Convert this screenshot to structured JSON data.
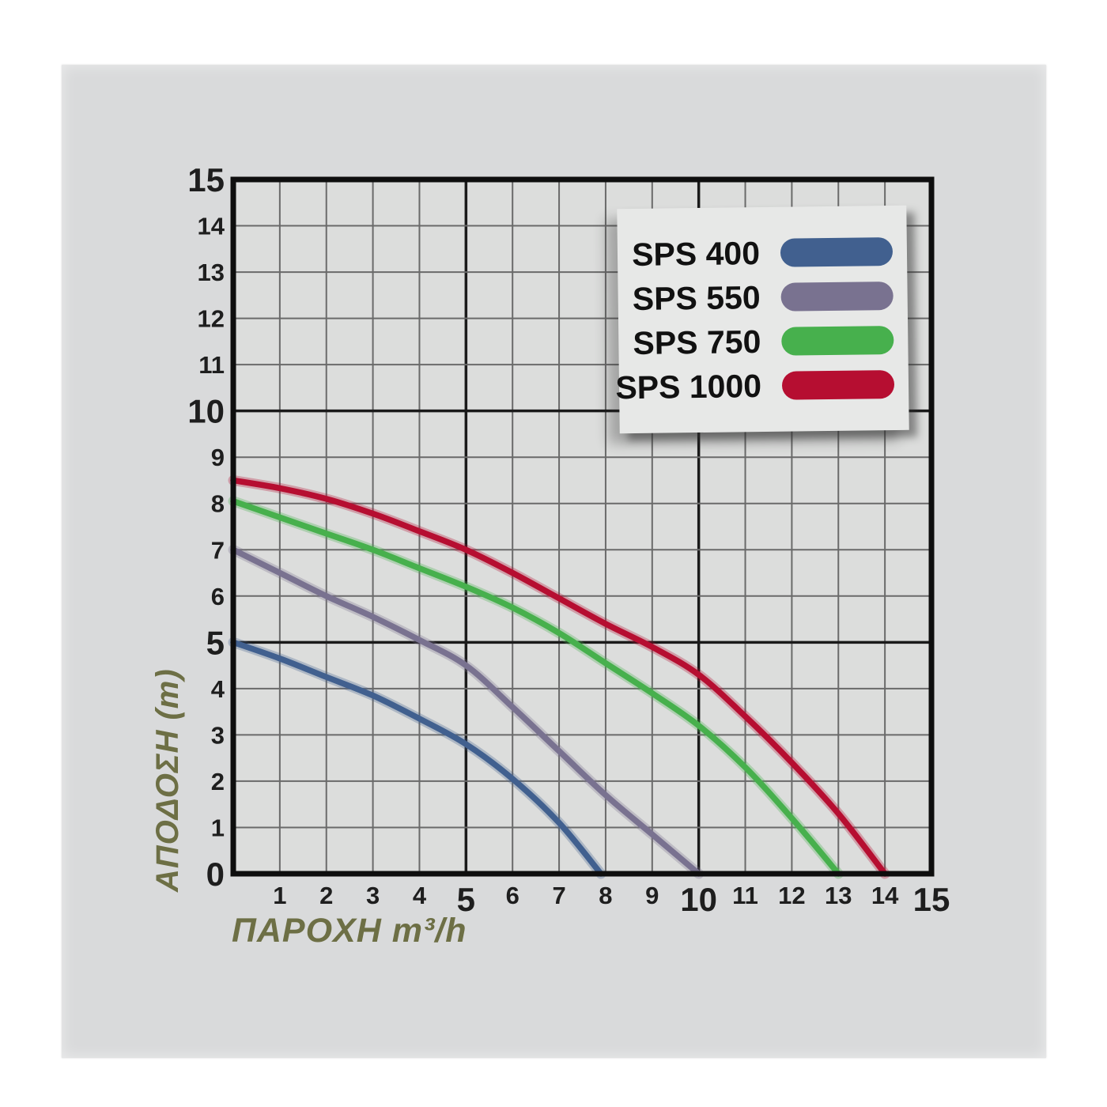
{
  "colors": {
    "panel_bg": "#d9dadb",
    "plot_bg": "#dcdddc",
    "grid_minor": "#6a6a6a",
    "grid_major": "#1a1a1a",
    "axis_border": "#0e0e0e",
    "tick_label": "#1e1e1e",
    "axis_title": "#6d6f45",
    "legend_bg": "#e7e8e7",
    "legend_text": "#111111"
  },
  "chart_data": {
    "type": "line",
    "title": "",
    "xlabel": "ΠΑΡΟΧΗ m³/h",
    "ylabel": "ΑΠΟΔΟΣΗ (m)",
    "xlim": [
      0,
      15
    ],
    "ylim": [
      0,
      15
    ],
    "x_ticks": [
      1,
      2,
      3,
      4,
      5,
      6,
      7,
      8,
      9,
      10,
      11,
      12,
      13,
      14,
      15
    ],
    "y_ticks": [
      0,
      1,
      2,
      3,
      4,
      5,
      6,
      7,
      8,
      9,
      10,
      11,
      12,
      13,
      14,
      15
    ],
    "major_tick_every": 5,
    "grid": true,
    "legend_position": "top-right",
    "series": [
      {
        "name": "SPS 400",
        "color": "#41608f",
        "points": [
          [
            0,
            5.0
          ],
          [
            1,
            4.65
          ],
          [
            2,
            4.25
          ],
          [
            3,
            3.85
          ],
          [
            4,
            3.35
          ],
          [
            5,
            2.8
          ],
          [
            6,
            2.05
          ],
          [
            7,
            1.1
          ],
          [
            7.9,
            0
          ]
        ]
      },
      {
        "name": "SPS 550",
        "color": "#797290",
        "points": [
          [
            0,
            7.0
          ],
          [
            1,
            6.5
          ],
          [
            2,
            6.0
          ],
          [
            3,
            5.55
          ],
          [
            4,
            5.05
          ],
          [
            5,
            4.5
          ],
          [
            6,
            3.6
          ],
          [
            7,
            2.65
          ],
          [
            8,
            1.7
          ],
          [
            9,
            0.85
          ],
          [
            10,
            0
          ]
        ]
      },
      {
        "name": "SPS 750",
        "color": "#47b04d",
        "points": [
          [
            0,
            8.05
          ],
          [
            1,
            7.7
          ],
          [
            2,
            7.35
          ],
          [
            3,
            7.0
          ],
          [
            4,
            6.6
          ],
          [
            5,
            6.2
          ],
          [
            6,
            5.75
          ],
          [
            7,
            5.2
          ],
          [
            8,
            4.55
          ],
          [
            9,
            3.9
          ],
          [
            10,
            3.2
          ],
          [
            11,
            2.3
          ],
          [
            12,
            1.2
          ],
          [
            13,
            0
          ]
        ]
      },
      {
        "name": "SPS 1000",
        "color": "#b60e31",
        "points": [
          [
            0,
            8.5
          ],
          [
            1,
            8.33
          ],
          [
            2,
            8.1
          ],
          [
            3,
            7.78
          ],
          [
            4,
            7.4
          ],
          [
            5,
            7.0
          ],
          [
            6,
            6.5
          ],
          [
            7,
            5.95
          ],
          [
            8,
            5.4
          ],
          [
            9,
            4.9
          ],
          [
            10,
            4.3
          ],
          [
            11,
            3.4
          ],
          [
            12,
            2.4
          ],
          [
            13,
            1.3
          ],
          [
            14,
            0
          ]
        ]
      }
    ]
  }
}
